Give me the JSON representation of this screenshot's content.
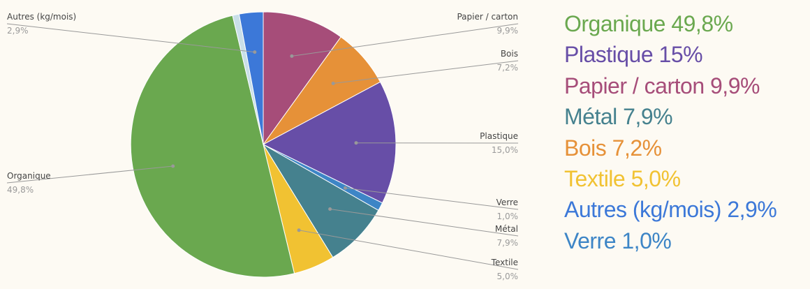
{
  "chart_data": {
    "type": "pie",
    "slices": [
      {
        "label": "Papier / carton",
        "value": 9.9,
        "value_label": "9,9%",
        "color": "#a64d79"
      },
      {
        "label": "Bois",
        "value": 7.2,
        "value_label": "7,2%",
        "color": "#e69138"
      },
      {
        "label": "Plastique",
        "value": 15.0,
        "value_label": "15,0%",
        "color": "#674ea7"
      },
      {
        "label": "Verre",
        "value": 1.0,
        "value_label": "1,0%",
        "color": "#3d85c6"
      },
      {
        "label": "Métal",
        "value": 7.9,
        "value_label": "7,9%",
        "color": "#45818e"
      },
      {
        "label": "Textile",
        "value": 5.0,
        "value_label": "5,0%",
        "color": "#f1c232"
      },
      {
        "label": "Organique",
        "value": 49.8,
        "value_label": "49,8%",
        "color": "#6aa84f"
      },
      {
        "label": "",
        "value": 0.8,
        "value_label": "",
        "color": "#c9dfe8"
      },
      {
        "label": "Autres (kg/mois)",
        "value": 2.9,
        "value_label": "2,9%",
        "color": "#3c78d8"
      }
    ],
    "legend_position": "right"
  },
  "legend": [
    {
      "text": "Organique 49,8%",
      "color": "#6aa84f"
    },
    {
      "text": "Plastique 15%",
      "color": "#674ea7"
    },
    {
      "text": "Papier / carton 9,9%",
      "color": "#a64d79"
    },
    {
      "text": "Métal 7,9%",
      "color": "#45818e"
    },
    {
      "text": "Bois 7,2%",
      "color": "#e69138"
    },
    {
      "text": "Textile 5,0%",
      "color": "#f1c232"
    },
    {
      "text": "Autres (kg/mois) 2,9%",
      "color": "#3c78d8"
    },
    {
      "text": "Verre 1,0%",
      "color": "#3d85c6"
    }
  ]
}
